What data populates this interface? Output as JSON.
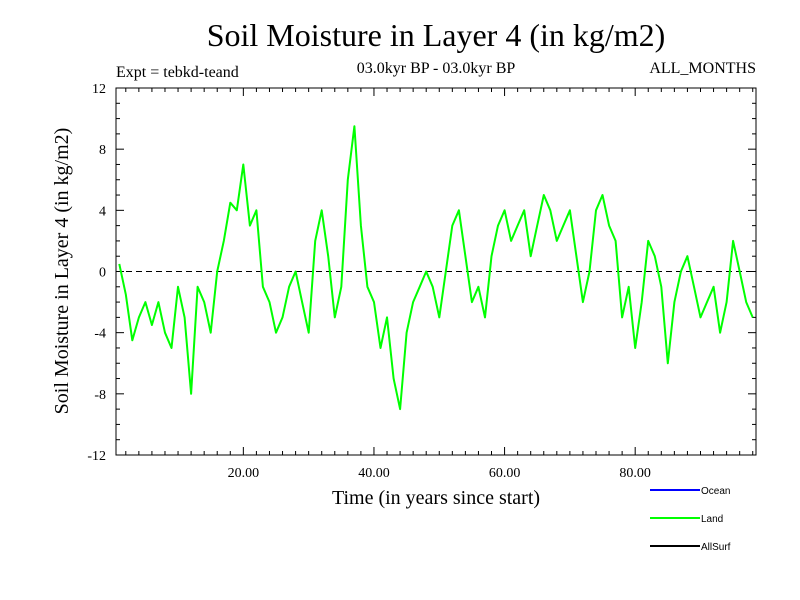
{
  "chart_data": {
    "type": "line",
    "title": "Soil Moisture in Layer 4 (in kg/m2)",
    "subtitle_left": "Expt = tebkd-teand",
    "subtitle_center": "03.0kyr BP - 03.0kyr BP",
    "subtitle_right": "ALL_MONTHS",
    "xlabel": "Time (in years since start)",
    "ylabel": "Soil Moisture in Layer 4 (in kg/m2)",
    "xlim": [
      0.5,
      98.5
    ],
    "ylim": [
      -12,
      12
    ],
    "x_ticks": [
      20,
      40,
      60,
      80
    ],
    "x_tick_labels": [
      "20.00",
      "40.00",
      "60.00",
      "80.00"
    ],
    "y_ticks": [
      -12,
      -8,
      -4,
      0,
      4,
      8,
      12
    ],
    "y_tick_labels": [
      "-12",
      "-8",
      "-4",
      "0",
      "4",
      "8",
      "12"
    ],
    "zero_line": 0,
    "legend": [
      {
        "name": "Ocean",
        "color": "#0000ff"
      },
      {
        "name": "Land",
        "color": "#00ff00"
      },
      {
        "name": "AllSurf",
        "color": "#000000"
      }
    ],
    "series": [
      {
        "name": "Land",
        "color": "#00ff00",
        "x": [
          1,
          2,
          3,
          4,
          5,
          6,
          7,
          8,
          9,
          10,
          11,
          12,
          13,
          14,
          15,
          16,
          17,
          18,
          19,
          20,
          21,
          22,
          23,
          24,
          25,
          26,
          27,
          28,
          29,
          30,
          31,
          32,
          33,
          34,
          35,
          36,
          37,
          38,
          39,
          40,
          41,
          42,
          43,
          44,
          45,
          46,
          47,
          48,
          49,
          50,
          51,
          52,
          53,
          54,
          55,
          56,
          57,
          58,
          59,
          60,
          61,
          62,
          63,
          64,
          65,
          66,
          67,
          68,
          69,
          70,
          71,
          72,
          73,
          74,
          75,
          76,
          77,
          78,
          79,
          80,
          81,
          82,
          83,
          84,
          85,
          86,
          87,
          88,
          89,
          90,
          91,
          92,
          93,
          94,
          95,
          96,
          97,
          98
        ],
        "values": [
          0.5,
          -1.5,
          -4.5,
          -3,
          -2,
          -3.5,
          -2,
          -4,
          -5,
          -1,
          -3,
          -8,
          -1,
          -2,
          -4,
          0,
          2,
          4.5,
          4,
          7,
          3,
          4,
          -1,
          -2,
          -4,
          -3,
          -1,
          0,
          -2,
          -4,
          2,
          4,
          1,
          -3,
          -1,
          6,
          9.5,
          3,
          -1,
          -2,
          -5,
          -3,
          -7,
          -9,
          -4,
          -2,
          -1,
          0,
          -1,
          -3,
          0,
          3,
          4,
          1,
          -2,
          -1,
          -3,
          1,
          3,
          4,
          2,
          3,
          4,
          1,
          3,
          5,
          4,
          2,
          3,
          4,
          1,
          -2,
          0,
          4,
          5,
          3,
          2,
          -3,
          -1,
          -5,
          -2,
          2,
          1,
          -1,
          -6,
          -2,
          0,
          1,
          -1,
          -3,
          -2,
          -1,
          -4,
          -2,
          2,
          0,
          -2,
          -3
        ]
      }
    ]
  }
}
